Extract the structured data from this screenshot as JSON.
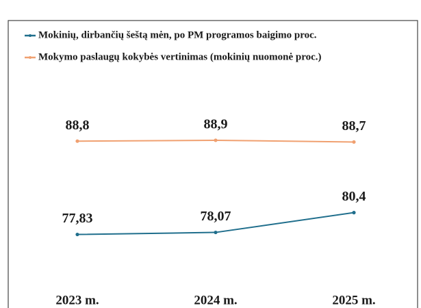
{
  "chart_data": {
    "type": "line",
    "categories": [
      "2023 m.",
      "2024 m.",
      "2025 m."
    ],
    "series": [
      {
        "name": "Mokinių, dirbančių šeštą mėn, po PM programos baigimo proc.",
        "color": "#1f6e8c",
        "values": [
          77.83,
          78.07,
          80.4
        ],
        "value_labels": [
          "77,83",
          "78,07",
          "80,4"
        ]
      },
      {
        "name": "Mokymo paslaugų kokybės vertinimas (mokinių nuomonė proc.)",
        "color": "#f0a070",
        "values": [
          88.8,
          88.9,
          88.7
        ],
        "value_labels": [
          "88,8",
          "88,9",
          "88,7"
        ]
      }
    ],
    "ylim": [
      72,
      93
    ]
  }
}
